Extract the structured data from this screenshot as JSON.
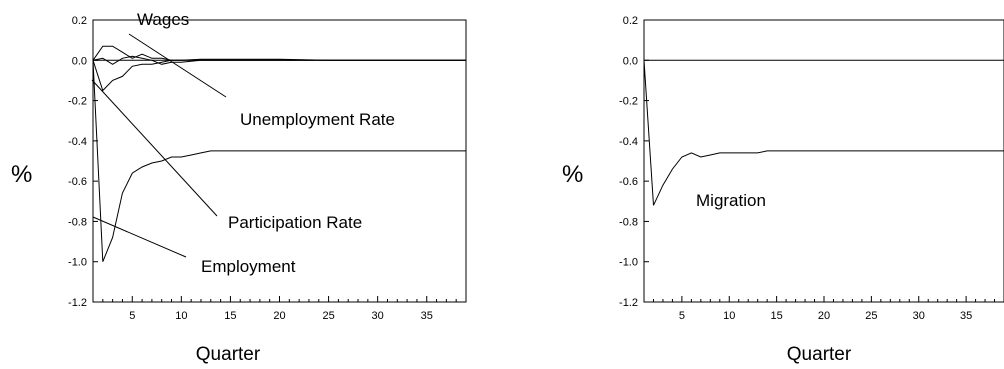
{
  "chart_data": [
    {
      "type": "line",
      "title": "",
      "xlabel": "Quarter",
      "ylabel": "%",
      "xlim": [
        1,
        39
      ],
      "ylim": [
        -1.2,
        0.2
      ],
      "xticks": [
        5,
        10,
        15,
        20,
        25,
        30,
        35
      ],
      "yticks": [
        0.2,
        0.0,
        -0.2,
        -0.4,
        -0.6,
        -0.8,
        -1.0,
        -1.2
      ],
      "ytick_labels": [
        "0.2",
        "0.0",
        "-0.2",
        "-0.4",
        "-0.6",
        "-0.8",
        "-1.0",
        "-1.2"
      ],
      "grid": false,
      "zero_line": true,
      "series": [
        {
          "name": "Wages",
          "x": [
            1,
            2,
            3,
            4,
            5,
            6,
            7,
            8,
            9,
            10,
            12,
            15,
            20,
            25,
            30,
            39
          ],
          "y": [
            0,
            0.07,
            0.07,
            0.04,
            0.01,
            0.03,
            0.01,
            0.01,
            0.0,
            0.0,
            0.005,
            0.005,
            0.005,
            0.0,
            0.0,
            0.0
          ]
        },
        {
          "name": "Unemployment Rate",
          "x": [
            1,
            2,
            3,
            4,
            5,
            6,
            7,
            8,
            9,
            10,
            12,
            15,
            20,
            25,
            30,
            39
          ],
          "y": [
            0,
            0.01,
            -0.02,
            0.01,
            0.02,
            0.01,
            0.0,
            -0.02,
            -0.01,
            -0.01,
            0.0,
            0.0,
            0.0,
            0.0,
            0.0,
            0.0
          ]
        },
        {
          "name": "Participation Rate",
          "x": [
            1,
            2,
            3,
            4,
            5,
            6,
            7,
            8,
            9,
            10,
            12,
            15,
            20,
            25,
            30,
            39
          ],
          "y": [
            0,
            -0.15,
            -0.1,
            -0.08,
            -0.03,
            -0.02,
            -0.02,
            -0.01,
            0.0,
            0.0,
            0.0,
            0.0,
            0.0,
            0.0,
            0.0,
            0.0
          ]
        },
        {
          "name": "Employment",
          "x": [
            1,
            2,
            3,
            4,
            5,
            6,
            7,
            8,
            9,
            10,
            11,
            12,
            13,
            14,
            15,
            17,
            19,
            21,
            23,
            25,
            27,
            29,
            31,
            33,
            35,
            37,
            39
          ],
          "y": [
            0,
            -1.0,
            -0.88,
            -0.66,
            -0.56,
            -0.53,
            -0.51,
            -0.5,
            -0.48,
            -0.48,
            -0.47,
            -0.46,
            -0.45,
            -0.45,
            -0.45,
            -0.45,
            -0.45,
            -0.45,
            -0.45,
            -0.45,
            -0.45,
            -0.45,
            -0.45,
            -0.45,
            -0.45,
            -0.45,
            -0.45
          ]
        }
      ],
      "annotations": [
        {
          "text": "Wages",
          "series": "Wages"
        },
        {
          "text": "Unemployment Rate",
          "series": "Unemployment Rate"
        },
        {
          "text": "Participation Rate",
          "series": "Participation Rate"
        },
        {
          "text": "Employment",
          "series": "Employment"
        }
      ]
    },
    {
      "type": "line",
      "title": "",
      "xlabel": "Quarter",
      "ylabel": "%",
      "xlim": [
        1,
        39
      ],
      "ylim": [
        -1.2,
        0.2
      ],
      "xticks": [
        5,
        10,
        15,
        20,
        25,
        30,
        35
      ],
      "yticks": [
        0.2,
        0.0,
        -0.2,
        -0.4,
        -0.6,
        -0.8,
        -1.0,
        -1.2
      ],
      "ytick_labels": [
        "0.2",
        "0.0",
        "-0.2",
        "-0.4",
        "-0.6",
        "-0.8",
        "-1.0",
        "-1.2"
      ],
      "grid": false,
      "zero_line": true,
      "series": [
        {
          "name": "Migration",
          "x": [
            1,
            2,
            3,
            4,
            5,
            6,
            7,
            8,
            9,
            10,
            11,
            12,
            13,
            14,
            15,
            17,
            19,
            21,
            25,
            30,
            35,
            39
          ],
          "y": [
            0,
            -0.72,
            -0.62,
            -0.54,
            -0.48,
            -0.46,
            -0.48,
            -0.47,
            -0.46,
            -0.46,
            -0.46,
            -0.46,
            -0.46,
            -0.45,
            -0.45,
            -0.45,
            -0.45,
            -0.45,
            -0.45,
            -0.45,
            -0.45,
            -0.45
          ]
        }
      ],
      "annotations": [
        {
          "text": "Migration",
          "series": "Migration"
        }
      ]
    }
  ]
}
